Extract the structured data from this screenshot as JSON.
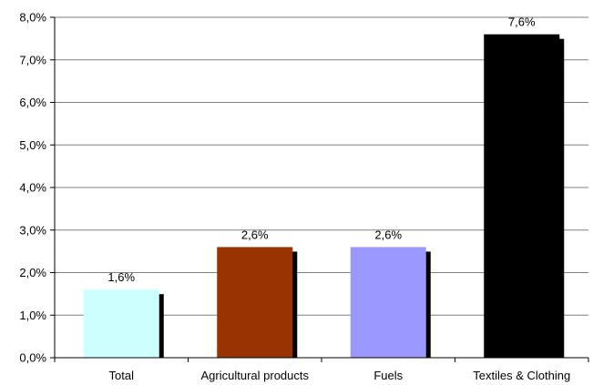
{
  "chart_data": {
    "type": "bar",
    "categories": [
      "Total",
      "Agricultural products",
      "Fuels",
      "Textiles & Clothing"
    ],
    "values": [
      1.6,
      2.6,
      2.6,
      7.6
    ],
    "data_labels": [
      "1,6%",
      "2,6%",
      "2,6%",
      "7,6%"
    ],
    "bar_colors": [
      "#ccffff",
      "#993300",
      "#9999ff",
      "#000000"
    ],
    "shadow_color": "#000000",
    "ylim": [
      0,
      8
    ],
    "y_ticks": [
      0,
      1,
      2,
      3,
      4,
      5,
      6,
      7,
      8
    ],
    "y_tick_labels": [
      "0,0%",
      "1,0%",
      "2,0%",
      "3,0%",
      "4,0%",
      "5,0%",
      "6,0%",
      "7,0%",
      "8,0%"
    ],
    "grid": true,
    "title": "",
    "xlabel": "",
    "ylabel": ""
  }
}
